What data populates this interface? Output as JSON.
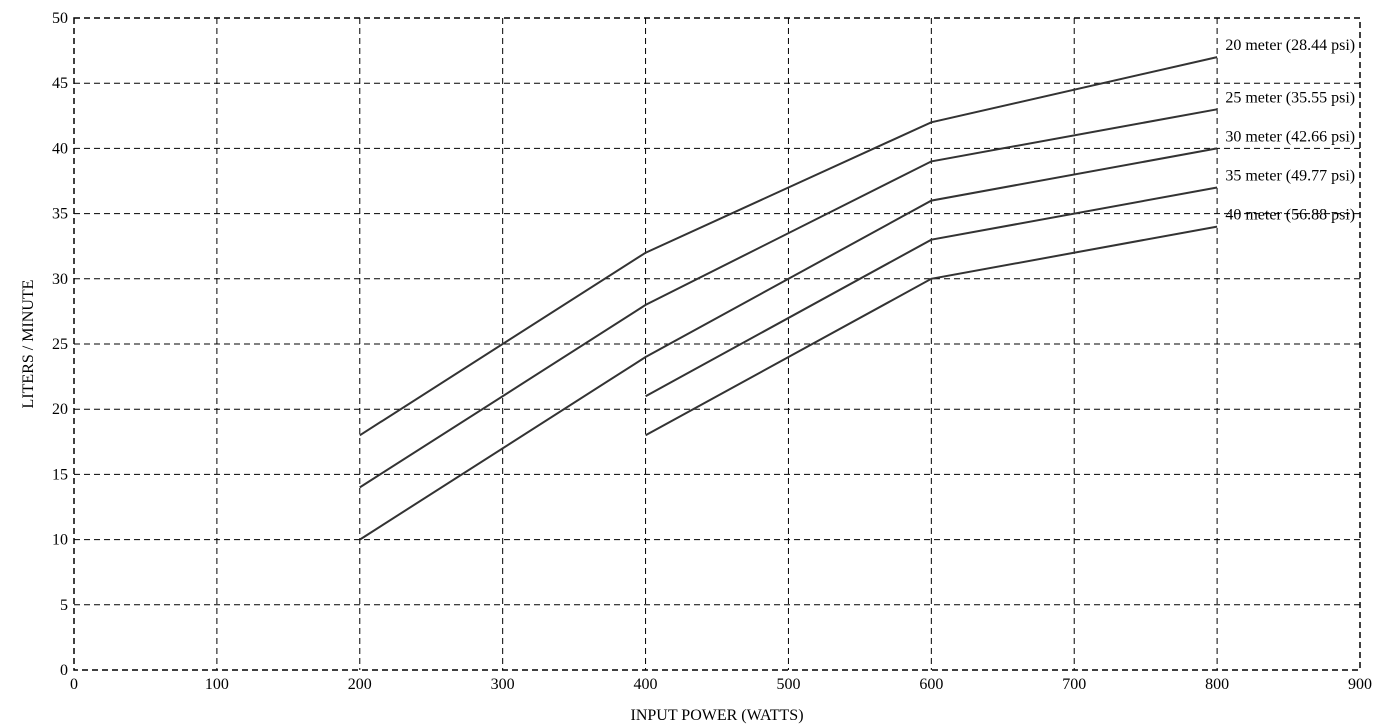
{
  "chart_data": {
    "type": "line",
    "title": "",
    "xlabel": "INPUT POWER (WATTS)",
    "ylabel": "LITERS / MINUTE",
    "xlim": [
      0,
      900
    ],
    "ylim": [
      0,
      50
    ],
    "xticks": [
      0,
      100,
      200,
      300,
      400,
      500,
      600,
      700,
      800,
      900
    ],
    "yticks": [
      0,
      5,
      10,
      15,
      20,
      25,
      30,
      35,
      40,
      45,
      50
    ],
    "grid": true,
    "legend": "none",
    "series": [
      {
        "name": "20 meter (28.44 psi)",
        "x": [
          200,
          400,
          600,
          800
        ],
        "y": [
          18,
          32,
          42,
          47
        ]
      },
      {
        "name": "25 meter (35.55 psi)",
        "x": [
          200,
          400,
          600,
          800
        ],
        "y": [
          14,
          28,
          39,
          43
        ]
      },
      {
        "name": "30 meter (42.66 psi)",
        "x": [
          200,
          400,
          600,
          800
        ],
        "y": [
          10,
          24,
          36,
          40
        ]
      },
      {
        "name": "35 meter (49.77 psi)",
        "x": [
          400,
          600,
          800
        ],
        "y": [
          21,
          33,
          37
        ]
      },
      {
        "name": "40 meter (56.88 psi)",
        "x": [
          400,
          600,
          800
        ],
        "y": [
          18,
          30,
          34
        ]
      }
    ]
  }
}
